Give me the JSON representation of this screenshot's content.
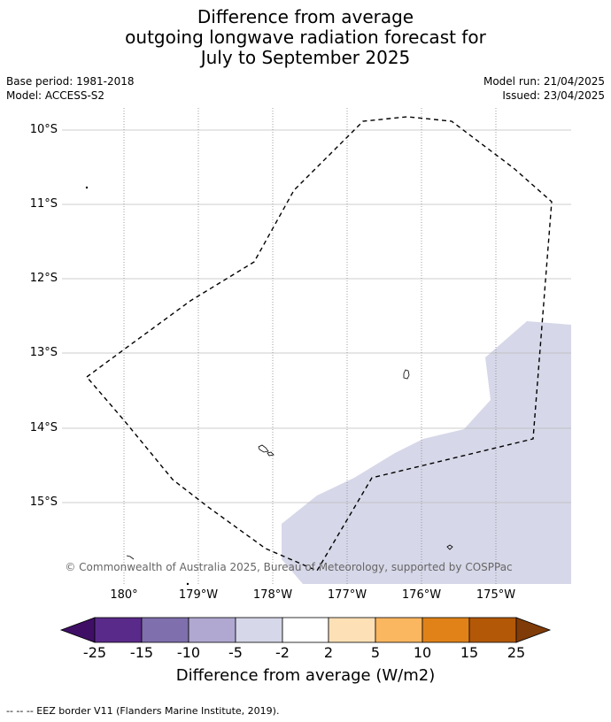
{
  "title": {
    "line1": "Difference from average",
    "line2": "outgoing longwave radiation forecast for",
    "line3": "July to September 2025"
  },
  "meta": {
    "base_period": "Base period: 1981-2018",
    "model": "Model: ACCESS-S2",
    "model_run": "Model run: 21/04/2025",
    "issued": "Issued: 23/04/2025"
  },
  "map": {
    "lat_labels": [
      "10°S",
      "11°S",
      "12°S",
      "13°S",
      "14°S",
      "15°S"
    ],
    "lon_labels": [
      "180°",
      "179°W",
      "178°W",
      "177°W",
      "176°W",
      "175°W"
    ],
    "copyright": "© Commonwealth of Australia 2025, Bureau of Meteorology, supported by COSPPac",
    "shaded_category_color": "#d6d7e8",
    "eez_line_style": "dashed"
  },
  "colorbar": {
    "title": "Difference from average (W/m2)",
    "tick_labels": [
      "-25",
      "-15",
      "-10",
      "-5",
      "-2",
      "2",
      "5",
      "10",
      "15",
      "25"
    ],
    "colors": [
      "#3f0f66",
      "#5a2a8a",
      "#7f6fac",
      "#b0a8d0",
      "#d6d7e8",
      "#ffffff",
      "#fee0b6",
      "#fbb660",
      "#e08218",
      "#b35806",
      "#7f3b08"
    ]
  },
  "footer": "--  --  -- EEZ border V11 (Flanders Marine Institute, 2019)."
}
